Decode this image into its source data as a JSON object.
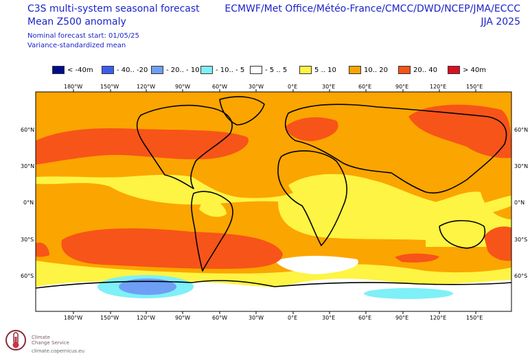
{
  "header": {
    "title": "C3S multi-system seasonal forecast",
    "subtitle": "Mean Z500 anomaly",
    "forecast_start": "Nominal forecast start: 01/05/25",
    "note": "Variance-standardized mean",
    "centres": "ECMWF/Met Office/Météo-France/CMCC/DWD/NCEP/JMA/ECCC",
    "season": "JJA 2025"
  },
  "legend": [
    {
      "label": "< -40m",
      "color": "#000d8a"
    },
    {
      "label": "- 40.. -20",
      "color": "#3c5ef0"
    },
    {
      "label": "- 20.. - 10",
      "color": "#6f9ff5"
    },
    {
      "label": "- 10.. - 5",
      "color": "#7ef0f7"
    },
    {
      "label": "- 5 .. 5",
      "color": "#ffffff"
    },
    {
      "label": "5 .. 10",
      "color": "#fef443"
    },
    {
      "label": "10.. 20",
      "color": "#fba500"
    },
    {
      "label": "20.. 40",
      "color": "#f75419"
    },
    {
      "label": ">  40m",
      "color": "#d61124"
    }
  ],
  "axes": {
    "lon_labels": [
      "180°W",
      "150°W",
      "120°W",
      "90°W",
      "60°W",
      "30°W",
      "0°E",
      "30°E",
      "60°E",
      "90°E",
      "120°E",
      "150°E"
    ],
    "lat_labels": [
      "60°N",
      "30°N",
      "0°N",
      "30°S",
      "60°S"
    ]
  },
  "logo": {
    "name_line1": "Climate",
    "name_line2": "Change Service",
    "url": "climate.copernicus.eu"
  }
}
